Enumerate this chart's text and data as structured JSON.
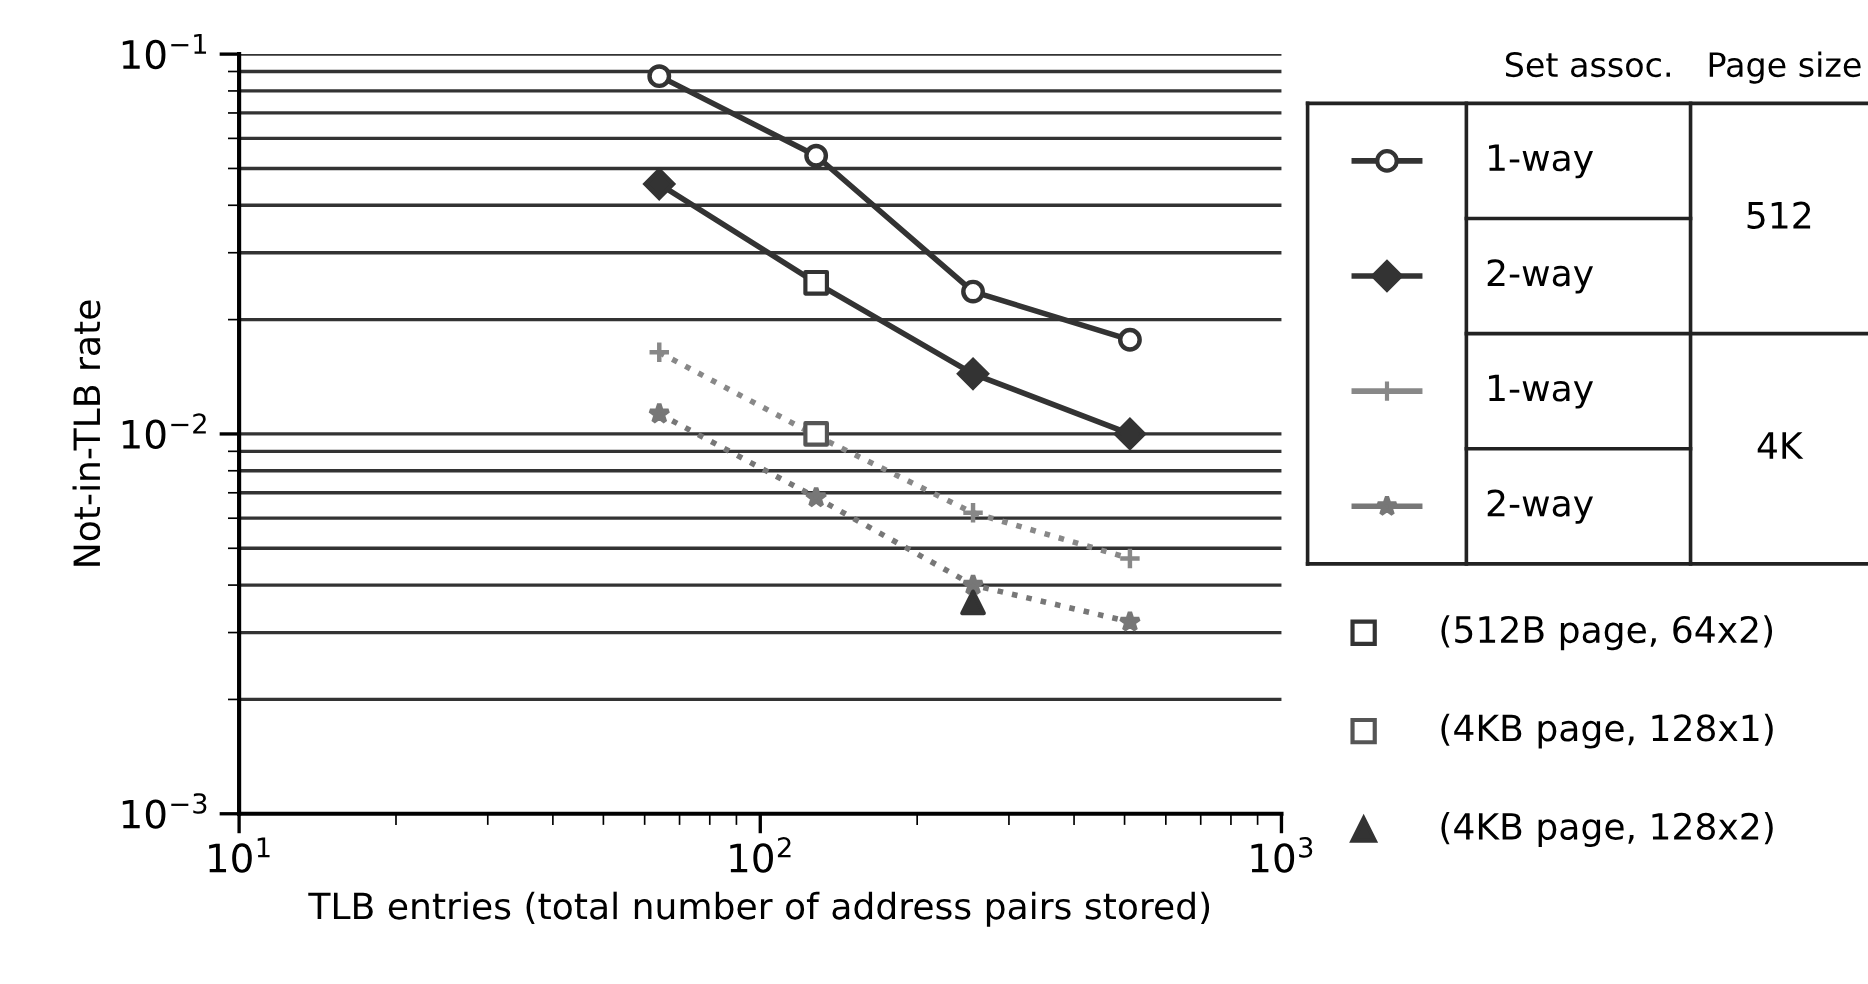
{
  "chart_data": {
    "type": "line",
    "xlabel": "TLB entries (total number of address pairs stored)",
    "ylabel": "Not-in-TLB rate",
    "log": "xy",
    "grid": "y",
    "legend": "right",
    "xlim": [
      10,
      1000
    ],
    "xticks": [
      {
        "value": 10,
        "label": "10$^{1}$"
      },
      {
        "value": 100,
        "label": "10$^{2}$"
      },
      {
        "value": 1000,
        "label": "10$^{3}$"
      }
    ],
    "ylim": [
      0.001,
      0.1
    ],
    "yticks": [
      {
        "value": 0.001,
        "label": "10$^{−3}$"
      },
      {
        "value": 0.01,
        "label": "10$^{−2}$"
      },
      {
        "value": 0.1,
        "label": "10$^{−1}$"
      }
    ],
    "annotations": [
      "Set assoc.",
      "Page size",
      "512",
      "4K"
    ],
    "series": [
      {
        "name": "1-way",
        "color": "#333333",
        "marker": "circle",
        "line_style": "solid",
        "x": [
          64,
          128,
          256,
          512
        ],
        "values": [
          0.0875,
          0.054,
          0.0237,
          0.0177
        ]
      },
      {
        "name": "2-way",
        "color": "#333333",
        "marker": "diamond",
        "line_style": "solid",
        "x": [
          64,
          128,
          256,
          512
        ],
        "values": [
          0.0455,
          0.025,
          0.0144,
          0.01
        ]
      },
      {
        "name": "1-way",
        "color": "#888888",
        "marker": "cross",
        "line_style": "dotted",
        "x": [
          64,
          128,
          256,
          512
        ],
        "values": [
          0.0164,
          0.0099,
          0.0062,
          0.0047
        ]
      },
      {
        "name": "2-way",
        "color": "#777777",
        "marker": "star",
        "line_style": "dotted",
        "x": [
          64,
          128,
          256,
          512
        ],
        "values": [
          0.0113,
          0.0068,
          0.004,
          0.0032
        ]
      },
      {
        "type": "scatter",
        "name": "(512B page, 64x2)",
        "color": "#333333",
        "marker": "square",
        "x": [
          128
        ],
        "values": [
          0.025
        ]
      },
      {
        "type": "scatter",
        "name": "(4KB page, 128x1)",
        "color": "#555555",
        "marker": "square",
        "x": [
          128
        ],
        "values": [
          0.01
        ]
      },
      {
        "type": "scatter",
        "name": "(4KB page, 128x2)",
        "color": "#333333",
        "marker": "triangle",
        "x": [
          256
        ],
        "values": [
          0.0036
        ]
      }
    ]
  }
}
